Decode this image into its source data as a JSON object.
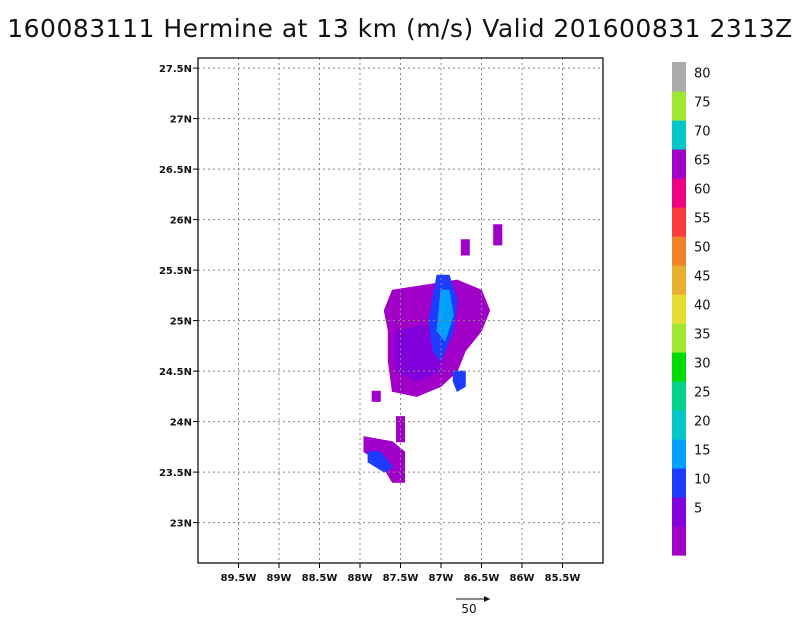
{
  "title": "160083111 Hermine at 13 km (m/s) Valid 201600831 2313Z",
  "chart_data": {
    "type": "heatmap",
    "title": "160083111 Hermine at 13 km (m/s) Valid 201600831 2313Z",
    "xlim": [
      -90.0,
      -85.0
    ],
    "ylim": [
      22.6,
      27.6
    ],
    "grid": true,
    "x_ticks": [
      {
        "value": -89.5,
        "label": "89.5W"
      },
      {
        "value": -89.0,
        "label": "89W"
      },
      {
        "value": -88.5,
        "label": "88.5W"
      },
      {
        "value": -88.0,
        "label": "88W"
      },
      {
        "value": -87.5,
        "label": "87.5W"
      },
      {
        "value": -87.0,
        "label": "87W"
      },
      {
        "value": -86.5,
        "label": "86.5W"
      },
      {
        "value": -86.0,
        "label": "86W"
      },
      {
        "value": -85.5,
        "label": "85.5W"
      }
    ],
    "y_ticks": [
      {
        "value": 23.0,
        "label": "23N"
      },
      {
        "value": 23.5,
        "label": "23.5N"
      },
      {
        "value": 24.0,
        "label": "24N"
      },
      {
        "value": 24.5,
        "label": "24.5N"
      },
      {
        "value": 25.0,
        "label": "25N"
      },
      {
        "value": 25.5,
        "label": "25.5N"
      },
      {
        "value": 26.0,
        "label": "26N"
      },
      {
        "value": 26.5,
        "label": "26.5N"
      },
      {
        "value": 27.0,
        "label": "27N"
      },
      {
        "value": 27.5,
        "label": "27.5N"
      }
    ],
    "colorbar": {
      "levels": [
        {
          "color": "#a000c8",
          "label": ""
        },
        {
          "color": "#8200dc",
          "label": "5"
        },
        {
          "color": "#1e3cff",
          "label": "10"
        },
        {
          "color": "#00a0ff",
          "label": "15"
        },
        {
          "color": "#00c8c8",
          "label": "20"
        },
        {
          "color": "#00d28c",
          "label": "25"
        },
        {
          "color": "#00dc00",
          "label": "30"
        },
        {
          "color": "#a0e632",
          "label": "35"
        },
        {
          "color": "#e6dc32",
          "label": "40"
        },
        {
          "color": "#e6af2d",
          "label": "45"
        },
        {
          "color": "#f08228",
          "label": "50"
        },
        {
          "color": "#fa3c3c",
          "label": "55"
        },
        {
          "color": "#f00082",
          "label": "60"
        },
        {
          "color": "#a000c8",
          "label": "65"
        },
        {
          "color": "#00c8c8",
          "label": "70"
        },
        {
          "color": "#a0e632",
          "label": "75"
        },
        {
          "color": "#aaaaaa",
          "label": "80"
        }
      ]
    },
    "reference_vector": {
      "label": "50"
    },
    "regions": [
      {
        "level": 0,
        "points": [
          [
            -87.6,
            25.3
          ],
          [
            -87.2,
            25.35
          ],
          [
            -86.8,
            25.4
          ],
          [
            -86.5,
            25.3
          ],
          [
            -86.4,
            25.1
          ],
          [
            -86.5,
            24.9
          ],
          [
            -86.7,
            24.7
          ],
          [
            -86.8,
            24.5
          ],
          [
            -87.0,
            24.35
          ],
          [
            -87.3,
            24.25
          ],
          [
            -87.6,
            24.3
          ],
          [
            -87.65,
            24.6
          ],
          [
            -87.65,
            24.9
          ],
          [
            -87.7,
            25.1
          ]
        ]
      },
      {
        "level": 1,
        "points": [
          [
            -87.55,
            24.9
          ],
          [
            -87.2,
            24.95
          ],
          [
            -87.0,
            24.8
          ],
          [
            -87.0,
            24.5
          ],
          [
            -87.3,
            24.4
          ],
          [
            -87.55,
            24.5
          ]
        ]
      },
      {
        "level": 2,
        "points": [
          [
            -87.05,
            25.45
          ],
          [
            -86.9,
            25.45
          ],
          [
            -86.8,
            25.2
          ],
          [
            -86.85,
            24.9
          ],
          [
            -87.0,
            24.6
          ],
          [
            -87.1,
            24.7
          ],
          [
            -87.15,
            25.0
          ]
        ]
      },
      {
        "level": 3,
        "points": [
          [
            -87.0,
            25.3
          ],
          [
            -86.9,
            25.3
          ],
          [
            -86.85,
            25.05
          ],
          [
            -86.95,
            24.8
          ],
          [
            -87.05,
            24.9
          ]
        ]
      },
      {
        "level": 0,
        "points": [
          [
            -87.95,
            23.85
          ],
          [
            -87.6,
            23.8
          ],
          [
            -87.45,
            23.7
          ],
          [
            -87.45,
            23.4
          ],
          [
            -87.6,
            23.4
          ],
          [
            -87.75,
            23.6
          ],
          [
            -87.95,
            23.7
          ]
        ]
      },
      {
        "level": 2,
        "points": [
          [
            -87.9,
            23.7
          ],
          [
            -87.75,
            23.7
          ],
          [
            -87.6,
            23.55
          ],
          [
            -87.7,
            23.5
          ],
          [
            -87.9,
            23.6
          ]
        ]
      },
      {
        "level": 0,
        "points": [
          [
            -87.55,
            24.05
          ],
          [
            -87.45,
            24.05
          ],
          [
            -87.45,
            23.8
          ],
          [
            -87.55,
            23.8
          ]
        ]
      },
      {
        "level": 0,
        "points": [
          [
            -87.85,
            24.3
          ],
          [
            -87.75,
            24.3
          ],
          [
            -87.75,
            24.2
          ],
          [
            -87.85,
            24.2
          ]
        ]
      },
      {
        "level": 2,
        "points": [
          [
            -86.85,
            24.5
          ],
          [
            -86.7,
            24.5
          ],
          [
            -86.7,
            24.35
          ],
          [
            -86.8,
            24.3
          ],
          [
            -86.85,
            24.4
          ]
        ]
      },
      {
        "level": 0,
        "points": [
          [
            -86.75,
            25.8
          ],
          [
            -86.65,
            25.8
          ],
          [
            -86.65,
            25.65
          ],
          [
            -86.75,
            25.65
          ]
        ]
      },
      {
        "level": 0,
        "points": [
          [
            -86.35,
            25.95
          ],
          [
            -86.25,
            25.95
          ],
          [
            -86.25,
            25.75
          ],
          [
            -86.35,
            25.75
          ]
        ]
      }
    ]
  }
}
